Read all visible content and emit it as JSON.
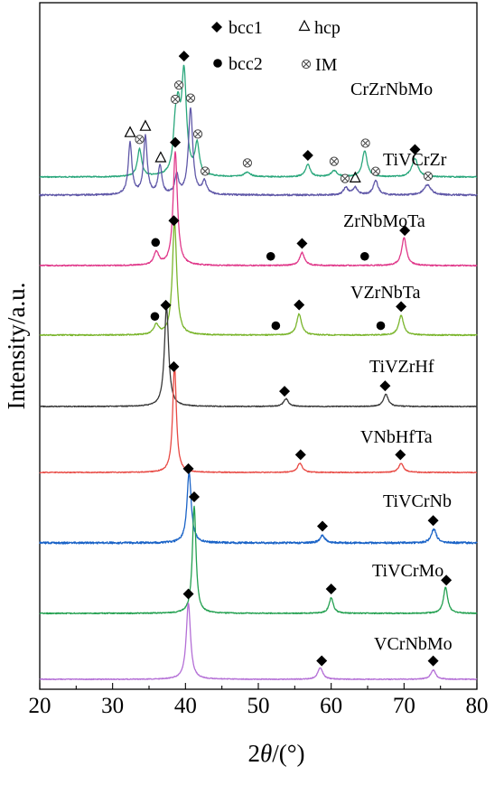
{
  "chart_data": {
    "type": "line",
    "title": "",
    "xlabel": {
      "prefix": "2",
      "symbol": "θ",
      "suffix": "/(°)"
    },
    "ylabel": "Intensity/a.u.",
    "xlim": [
      20,
      80
    ],
    "xticks": [
      20,
      30,
      40,
      50,
      60,
      70,
      80
    ],
    "y_ticks_shown": false,
    "grid": false,
    "legend": {
      "placement": "top",
      "entries": [
        {
          "marker": "diamond",
          "label": "bcc1"
        },
        {
          "marker": "triangle",
          "label": "hcp"
        },
        {
          "marker": "circle",
          "label": "bcc2"
        },
        {
          "marker": "otimes",
          "label": "IM"
        }
      ]
    },
    "series": [
      {
        "name": "CrZrNbMo",
        "color": "#2aa77c",
        "peaks": [
          {
            "x": 33.7,
            "h": 0.18,
            "w": 0.35
          },
          {
            "x": 38.6,
            "h": 0.24,
            "w": 0.35
          },
          {
            "x": 39.0,
            "h": 0.32,
            "w": 0.35
          },
          {
            "x": 39.8,
            "h": 0.65,
            "w": 0.4
          },
          {
            "x": 41.6,
            "h": 0.2,
            "w": 0.35
          },
          {
            "x": 48.5,
            "h": 0.03,
            "w": 0.5
          },
          {
            "x": 56.8,
            "h": 0.08,
            "w": 0.4
          },
          {
            "x": 60.4,
            "h": 0.04,
            "w": 0.5
          },
          {
            "x": 64.6,
            "h": 0.17,
            "w": 0.4
          },
          {
            "x": 71.5,
            "h": 0.12,
            "w": 0.5
          }
        ],
        "markers": [
          {
            "x": 33.7,
            "type": "otimes"
          },
          {
            "x": 38.6,
            "type": "otimes"
          },
          {
            "x": 39.1,
            "type": "otimes"
          },
          {
            "x": 39.8,
            "type": "diamond"
          },
          {
            "x": 41.7,
            "type": "otimes"
          },
          {
            "x": 48.5,
            "type": "otimes"
          },
          {
            "x": 56.8,
            "type": "diamond"
          },
          {
            "x": 60.4,
            "type": "otimes"
          },
          {
            "x": 64.7,
            "type": "otimes"
          },
          {
            "x": 71.5,
            "type": "diamond"
          }
        ]
      },
      {
        "name": "TiVCrZr",
        "color": "#6058a8",
        "peaks": [
          {
            "x": 32.4,
            "h": 0.36,
            "w": 0.3
          },
          {
            "x": 34.5,
            "h": 0.4,
            "w": 0.3
          },
          {
            "x": 36.5,
            "h": 0.2,
            "w": 0.3
          },
          {
            "x": 38.8,
            "h": 0.13,
            "w": 0.3
          },
          {
            "x": 40.7,
            "h": 0.6,
            "w": 0.35
          },
          {
            "x": 42.6,
            "h": 0.09,
            "w": 0.35
          },
          {
            "x": 62.0,
            "h": 0.05,
            "w": 0.4
          },
          {
            "x": 63.3,
            "h": 0.05,
            "w": 0.4
          },
          {
            "x": 66.1,
            "h": 0.1,
            "w": 0.4
          },
          {
            "x": 73.2,
            "h": 0.07,
            "w": 0.6
          }
        ],
        "markers": [
          {
            "x": 32.4,
            "type": "triangle"
          },
          {
            "x": 34.5,
            "type": "triangle"
          },
          {
            "x": 36.6,
            "type": "triangle"
          },
          {
            "x": 40.7,
            "type": "otimes"
          },
          {
            "x": 42.7,
            "type": "otimes"
          },
          {
            "x": 61.9,
            "type": "otimes"
          },
          {
            "x": 63.3,
            "type": "triangle"
          },
          {
            "x": 66.1,
            "type": "otimes"
          },
          {
            "x": 73.3,
            "type": "otimes"
          }
        ]
      },
      {
        "name": "ZrNbMoTa",
        "color": "#e0388a",
        "peaks": [
          {
            "x": 36.0,
            "h": 0.08,
            "w": 0.4
          },
          {
            "x": 38.6,
            "h": 0.7,
            "w": 0.35
          },
          {
            "x": 56.0,
            "h": 0.08,
            "w": 0.4
          },
          {
            "x": 70.0,
            "h": 0.17,
            "w": 0.4
          }
        ],
        "markers": [
          {
            "x": 35.9,
            "type": "circle"
          },
          {
            "x": 38.6,
            "type": "diamond"
          },
          {
            "x": 51.7,
            "type": "circle"
          },
          {
            "x": 56.0,
            "type": "diamond"
          },
          {
            "x": 64.6,
            "type": "circle"
          },
          {
            "x": 70.1,
            "type": "diamond"
          }
        ]
      },
      {
        "name": "VZrNbTa",
        "color": "#7ab52c",
        "peaks": [
          {
            "x": 36.0,
            "h": 0.06,
            "w": 0.4
          },
          {
            "x": 38.5,
            "h": 0.7,
            "w": 0.35
          },
          {
            "x": 55.6,
            "h": 0.13,
            "w": 0.4
          },
          {
            "x": 69.6,
            "h": 0.12,
            "w": 0.4
          }
        ],
        "markers": [
          {
            "x": 35.8,
            "type": "circle"
          },
          {
            "x": 38.4,
            "type": "diamond"
          },
          {
            "x": 52.4,
            "type": "circle"
          },
          {
            "x": 55.6,
            "type": "diamond"
          },
          {
            "x": 66.8,
            "type": "circle"
          },
          {
            "x": 69.6,
            "type": "diamond"
          }
        ]
      },
      {
        "name": "TiVZrHf",
        "color": "#383838",
        "peaks": [
          {
            "x": 37.4,
            "h": 0.65,
            "w": 0.35
          },
          {
            "x": 53.8,
            "h": 0.05,
            "w": 0.4
          },
          {
            "x": 67.5,
            "h": 0.08,
            "w": 0.4
          }
        ],
        "markers": [
          {
            "x": 37.3,
            "type": "diamond"
          },
          {
            "x": 53.6,
            "type": "diamond"
          },
          {
            "x": 67.4,
            "type": "diamond"
          }
        ]
      },
      {
        "name": "VNbHfTa",
        "color": "#e84a44",
        "peaks": [
          {
            "x": 38.5,
            "h": 0.7,
            "w": 0.3
          },
          {
            "x": 55.7,
            "h": 0.06,
            "w": 0.4
          },
          {
            "x": 69.6,
            "h": 0.06,
            "w": 0.4
          }
        ],
        "markers": [
          {
            "x": 38.4,
            "type": "diamond"
          },
          {
            "x": 55.8,
            "type": "diamond"
          },
          {
            "x": 69.5,
            "type": "diamond"
          }
        ]
      },
      {
        "name": "TiVCrNb",
        "color": "#1a63c7",
        "peaks": [
          {
            "x": 40.5,
            "h": 0.65,
            "w": 0.35
          },
          {
            "x": 58.8,
            "h": 0.07,
            "w": 0.4
          },
          {
            "x": 74.1,
            "h": 0.13,
            "w": 0.4
          }
        ],
        "markers": [
          {
            "x": 40.4,
            "type": "diamond"
          },
          {
            "x": 58.8,
            "type": "diamond"
          },
          {
            "x": 74.0,
            "type": "diamond"
          }
        ]
      },
      {
        "name": "TiVCrMo",
        "color": "#23a050",
        "peaks": [
          {
            "x": 41.2,
            "h": 0.7,
            "w": 0.3
          },
          {
            "x": 60.0,
            "h": 0.1,
            "w": 0.35
          },
          {
            "x": 75.7,
            "h": 0.17,
            "w": 0.35
          }
        ],
        "markers": [
          {
            "x": 41.2,
            "type": "diamond"
          },
          {
            "x": 60.0,
            "type": "diamond"
          },
          {
            "x": 75.8,
            "type": "diamond"
          }
        ]
      },
      {
        "name": "VCrNbMo",
        "color": "#b46fd6",
        "peaks": [
          {
            "x": 40.4,
            "h": 0.65,
            "w": 0.35
          },
          {
            "x": 58.5,
            "h": 0.1,
            "w": 0.4
          },
          {
            "x": 74.0,
            "h": 0.08,
            "w": 0.4
          }
        ],
        "markers": [
          {
            "x": 40.4,
            "type": "diamond"
          },
          {
            "x": 58.7,
            "type": "diamond"
          },
          {
            "x": 74.0,
            "type": "diamond"
          }
        ]
      }
    ]
  }
}
